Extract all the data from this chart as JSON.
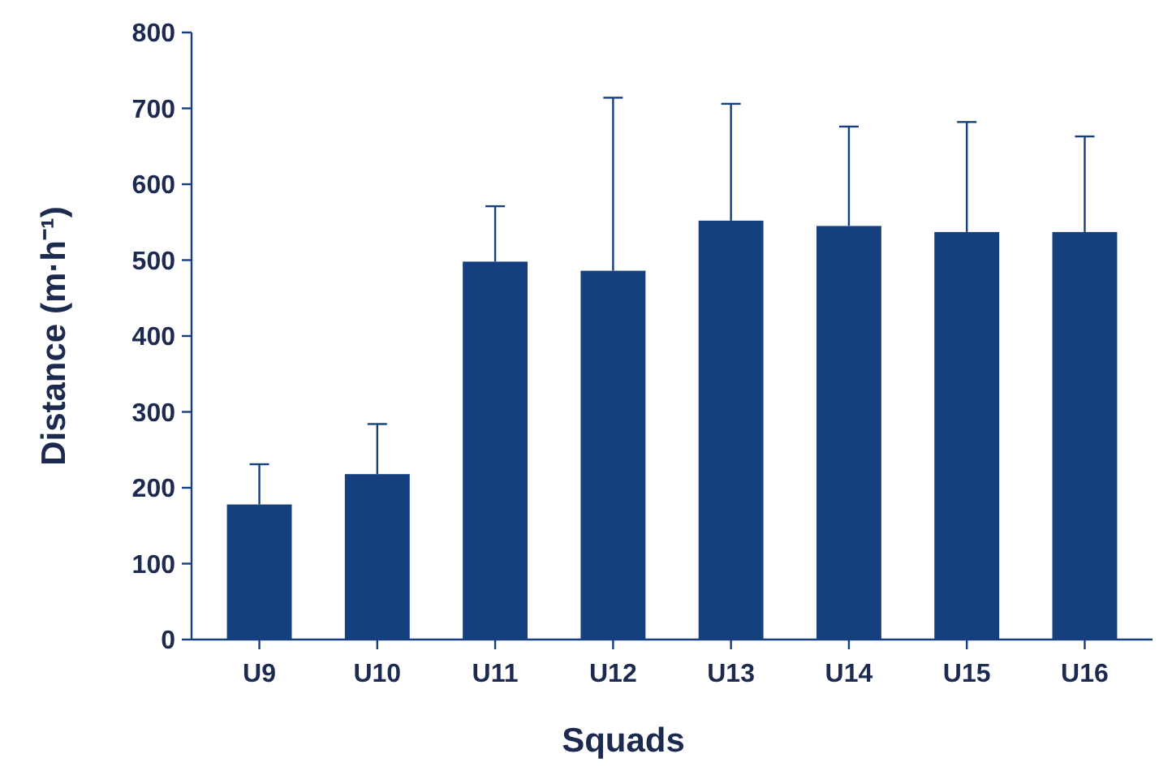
{
  "chart_data": {
    "type": "bar",
    "xlabel": "Squads",
    "ylabel": "Distance (m·h⁻¹)",
    "categories": [
      "U9",
      "U10",
      "U11",
      "U12",
      "U13",
      "U14",
      "U15",
      "U16"
    ],
    "values": [
      178,
      218,
      498,
      486,
      552,
      545,
      537,
      537
    ],
    "errors": [
      [
        178,
        231
      ],
      [
        218,
        284
      ],
      [
        498,
        571
      ],
      [
        486,
        714
      ],
      [
        552,
        706
      ],
      [
        545,
        676
      ],
      [
        537,
        682
      ],
      [
        537,
        663
      ]
    ],
    "color": "#163f80",
    "ylim": [
      0,
      800
    ],
    "yticks": [
      0,
      100,
      200,
      300,
      400,
      500,
      600,
      700,
      800
    ],
    "grid": false
  }
}
